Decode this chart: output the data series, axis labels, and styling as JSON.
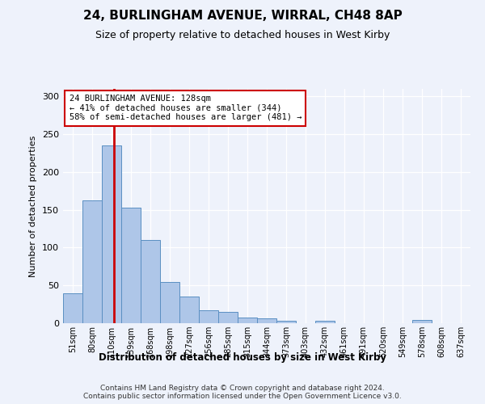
{
  "title": "24, BURLINGHAM AVENUE, WIRRAL, CH48 8AP",
  "subtitle": "Size of property relative to detached houses in West Kirby",
  "xlabel": "Distribution of detached houses by size in West Kirby",
  "ylabel": "Number of detached properties",
  "bin_labels": [
    "51sqm",
    "80sqm",
    "110sqm",
    "139sqm",
    "168sqm",
    "198sqm",
    "227sqm",
    "256sqm",
    "285sqm",
    "315sqm",
    "344sqm",
    "373sqm",
    "403sqm",
    "432sqm",
    "461sqm",
    "491sqm",
    "520sqm",
    "549sqm",
    "578sqm",
    "608sqm",
    "637sqm"
  ],
  "bar_values": [
    40,
    163,
    235,
    153,
    110,
    55,
    35,
    17,
    15,
    8,
    6,
    3,
    0,
    3,
    0,
    0,
    0,
    0,
    4,
    0,
    0
  ],
  "bar_color": "#aec6e8",
  "bar_edge_color": "#5a8fc2",
  "highlight_line_color": "#cc0000",
  "annotation_text": "24 BURLINGHAM AVENUE: 128sqm\n← 41% of detached houses are smaller (344)\n58% of semi-detached houses are larger (481) →",
  "annotation_box_color": "#cc0000",
  "ylim": [
    0,
    310
  ],
  "yticks": [
    0,
    50,
    100,
    150,
    200,
    250,
    300
  ],
  "footnote": "Contains HM Land Registry data © Crown copyright and database right 2024.\nContains public sector information licensed under the Open Government Licence v3.0.",
  "bg_color": "#eef2fb",
  "grid_color": "#ffffff"
}
